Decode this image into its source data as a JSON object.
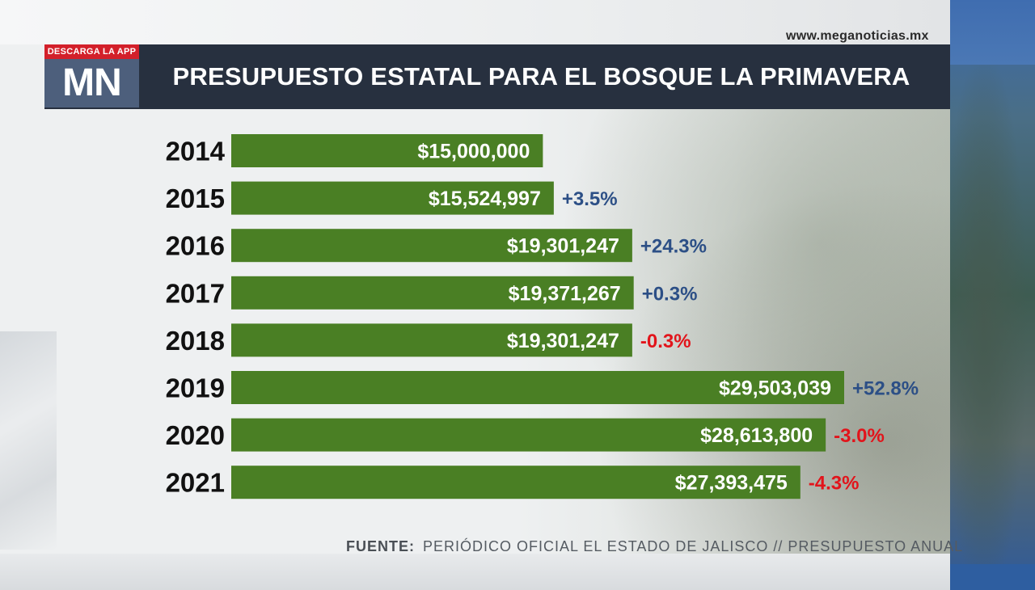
{
  "site": {
    "url": "www.meganoticias.mx"
  },
  "logo": {
    "tag": "DESCARGA LA APP",
    "text": "MN"
  },
  "header": {
    "title": "PRESUPUESTO ESTATAL PARA EL BOSQUE LA PRIMAVERA"
  },
  "source": {
    "label": "FUENTE:",
    "text": "PERIÓDICO OFICIAL EL ESTADO DE JALISCO // PRESUPUESTO ANUAL"
  },
  "colors": {
    "bar": "#4a7f24",
    "positive": "#2c4f86",
    "negative": "#e2141b",
    "header": "#27303f",
    "tag": "#d3202a"
  },
  "chart_data": {
    "type": "bar",
    "orientation": "horizontal",
    "title": "PRESUPUESTO ESTATAL PARA EL BOSQUE LA PRIMAVERA",
    "categories": [
      "2014",
      "2015",
      "2016",
      "2017",
      "2018",
      "2019",
      "2020",
      "2021"
    ],
    "values": [
      15000000,
      15524997,
      19301247,
      19371267,
      19301247,
      29503039,
      28613800,
      27393475
    ],
    "value_labels": [
      "$15,000,000",
      "$15,524,997",
      "$19,301,247",
      "$19,371,267",
      "$19,301,247",
      "$29,503,039",
      "$28,613,800",
      "$27,393,475"
    ],
    "change_labels": [
      "",
      "+3.5%",
      "+24.3%",
      "+0.3%",
      "-0.3%",
      "+52.8%",
      "-3.0%",
      "-4.3%"
    ],
    "xlim": [
      0,
      29503039
    ],
    "grid": false,
    "legend": "none"
  }
}
